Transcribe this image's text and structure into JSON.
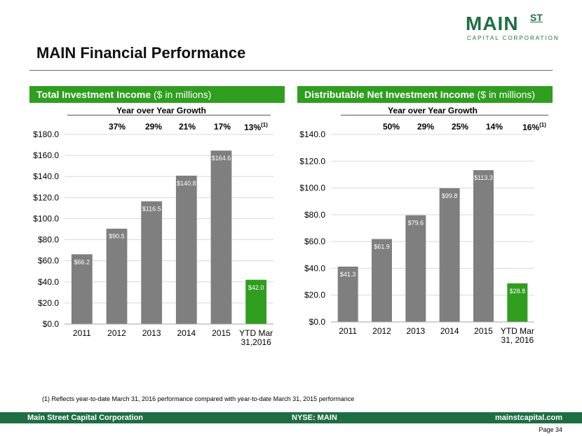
{
  "logo": {
    "main": "MAIN",
    "st": "ST",
    "sub": "CAPITAL CORPORATION"
  },
  "title": "MAIN Financial Performance",
  "left_panel": {
    "header_bold": "Total Investment Income",
    "header_rest": " ($ in millions)",
    "growth_title": "Year over Year Growth",
    "growth": [
      "37%",
      "29%",
      "21%",
      "17%",
      "13%"
    ],
    "growth_note": "(1)"
  },
  "right_panel": {
    "header_bold": "Distributable Net Investment Income",
    "header_rest": " ($ in millions)",
    "growth_title": "Year over Year Growth",
    "growth": [
      "50%",
      "29%",
      "25%",
      "14%",
      "16%"
    ],
    "growth_note": "(1)"
  },
  "chart_data": [
    {
      "type": "bar",
      "title": "Total Investment Income ($ in millions)",
      "categories": [
        "2011",
        "2012",
        "2013",
        "2014",
        "2015",
        "YTD Mar 31,2016"
      ],
      "category_lines": [
        [
          "2011"
        ],
        [
          "2012"
        ],
        [
          "2013"
        ],
        [
          "2014"
        ],
        [
          "2015"
        ],
        [
          "YTD Mar",
          "31,2016"
        ]
      ],
      "values": [
        66.2,
        90.5,
        116.5,
        140.8,
        164.6,
        42.0
      ],
      "labels": [
        "$66.2",
        "$90.5",
        "$116.5",
        "$140.8",
        "$164.6",
        "$42.0"
      ],
      "ylim": [
        0,
        180
      ],
      "yticks": [
        "$0.0",
        "$20.0",
        "$40.0",
        "$60.0",
        "$80.0",
        "$100.0",
        "$120.0",
        "$140.0",
        "$160.0",
        "$180.0"
      ],
      "ytick_values": [
        0,
        20,
        40,
        60,
        80,
        100,
        120,
        140,
        160,
        180
      ],
      "colors": [
        "#7f7f7f",
        "#7f7f7f",
        "#7f7f7f",
        "#7f7f7f",
        "#7f7f7f",
        "#2f9e1f"
      ],
      "grid": true
    },
    {
      "type": "bar",
      "title": "Distributable Net Investment Income ($ in millions)",
      "categories": [
        "2011",
        "2012",
        "2013",
        "2014",
        "2015",
        "YTD Mar 31, 2016"
      ],
      "category_lines": [
        [
          "2011"
        ],
        [
          "2012"
        ],
        [
          "2013"
        ],
        [
          "2014"
        ],
        [
          "2015"
        ],
        [
          "YTD Mar",
          "31, 2016"
        ]
      ],
      "values": [
        41.3,
        61.9,
        79.6,
        99.8,
        113.3,
        28.8
      ],
      "labels": [
        "$41.3",
        "$61.9",
        "$79.6",
        "$99.8",
        "$113.3",
        "$28.8"
      ],
      "ylim": [
        0,
        140
      ],
      "yticks": [
        "$0.0",
        "$20.0",
        "$40.0",
        "$60.0",
        "$80.0",
        "$100.0",
        "$120.0",
        "$140.0"
      ],
      "ytick_values": [
        0,
        20,
        40,
        60,
        80,
        100,
        120,
        140
      ],
      "colors": [
        "#7f7f7f",
        "#7f7f7f",
        "#7f7f7f",
        "#7f7f7f",
        "#7f7f7f",
        "#2f9e1f"
      ],
      "grid": true
    }
  ],
  "footnote": "(1) Reflects year-to-date March 31, 2016 performance compared with year-to-date March 31, 2015 performance",
  "footer": {
    "left": "Main Street Capital Corporation",
    "center": "NYSE: MAIN",
    "right": "mainstcapital.com"
  },
  "page": "Page  34"
}
